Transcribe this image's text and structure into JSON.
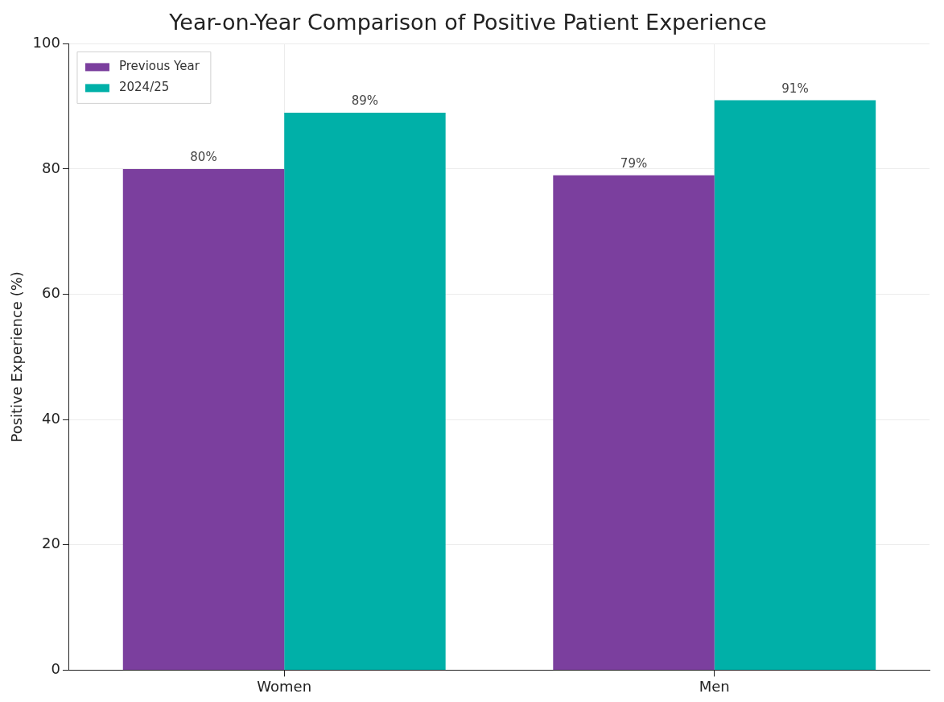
{
  "chart_data": {
    "type": "bar",
    "title": "Year-on-Year Comparison of Positive Patient Experience",
    "ylabel": "Positive Experience (%)",
    "categories": [
      "Women",
      "Men"
    ],
    "series": [
      {
        "name": "Previous Year",
        "color": "#7b3f9e",
        "values": [
          80,
          79
        ],
        "value_labels": [
          "80%",
          "79%"
        ]
      },
      {
        "name": "2024/25",
        "color": "#00b0a8",
        "values": [
          89,
          91
        ],
        "value_labels": [
          "89%",
          "91%"
        ]
      }
    ],
    "ylim": [
      0,
      100
    ],
    "yticks": [
      0,
      20,
      40,
      60,
      80,
      100
    ],
    "grid": true,
    "legend": "top left"
  }
}
